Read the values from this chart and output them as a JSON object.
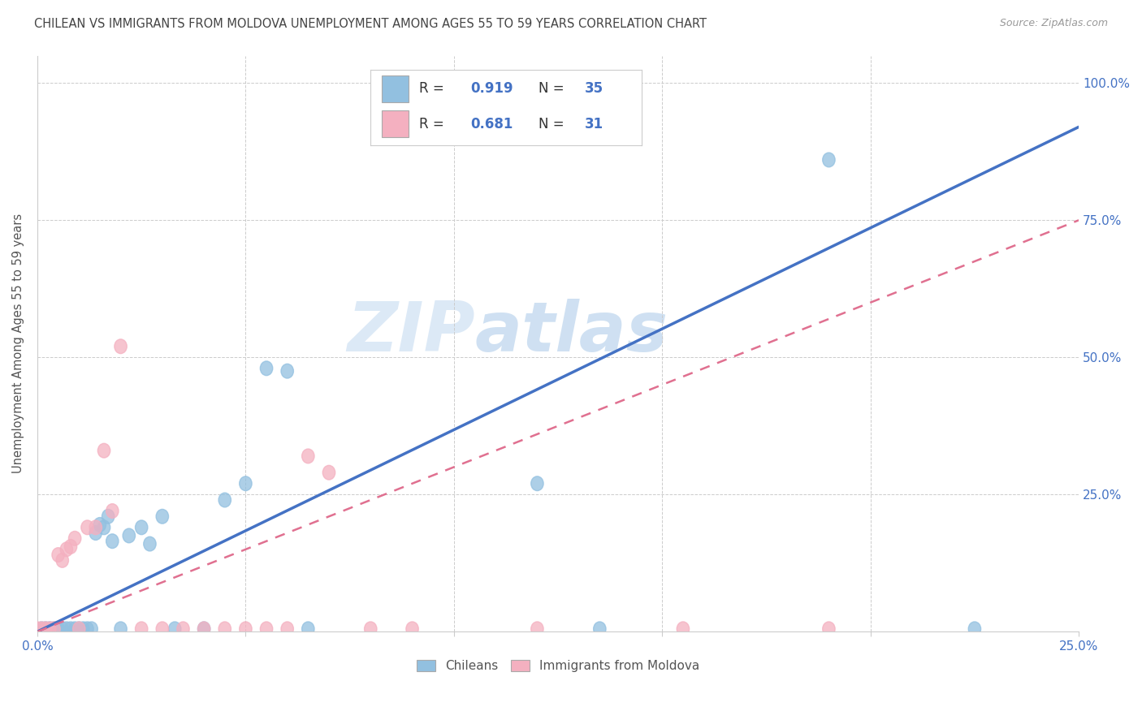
{
  "title": "CHILEAN VS IMMIGRANTS FROM MOLDOVA UNEMPLOYMENT AMONG AGES 55 TO 59 YEARS CORRELATION CHART",
  "source": "Source: ZipAtlas.com",
  "ylabel": "Unemployment Among Ages 55 to 59 years",
  "xlim": [
    0.0,
    0.25
  ],
  "ylim": [
    0.0,
    1.05
  ],
  "xticks": [
    0.0,
    0.05,
    0.1,
    0.15,
    0.2,
    0.25
  ],
  "yticks": [
    0.0,
    0.25,
    0.5,
    0.75,
    1.0
  ],
  "ytick_labels_right": [
    "",
    "25.0%",
    "50.0%",
    "75.0%",
    "100.0%"
  ],
  "xtick_labels": [
    "0.0%",
    "",
    "",
    "",
    "",
    "25.0%"
  ],
  "blue_R": "0.919",
  "blue_N": "35",
  "pink_R": "0.681",
  "pink_N": "31",
  "blue_scatter_x": [
    0.001,
    0.002,
    0.003,
    0.004,
    0.005,
    0.005,
    0.006,
    0.007,
    0.008,
    0.009,
    0.01,
    0.011,
    0.012,
    0.013,
    0.014,
    0.015,
    0.016,
    0.017,
    0.018,
    0.02,
    0.022,
    0.025,
    0.027,
    0.03,
    0.033,
    0.04,
    0.045,
    0.05,
    0.055,
    0.06,
    0.065,
    0.12,
    0.135,
    0.19,
    0.225
  ],
  "blue_scatter_y": [
    0.005,
    0.005,
    0.005,
    0.005,
    0.005,
    0.005,
    0.005,
    0.005,
    0.005,
    0.005,
    0.005,
    0.005,
    0.005,
    0.005,
    0.18,
    0.195,
    0.19,
    0.21,
    0.165,
    0.005,
    0.175,
    0.19,
    0.16,
    0.21,
    0.005,
    0.005,
    0.24,
    0.27,
    0.48,
    0.475,
    0.005,
    0.27,
    0.005,
    0.86,
    0.005
  ],
  "pink_scatter_x": [
    0.0,
    0.001,
    0.002,
    0.003,
    0.004,
    0.005,
    0.006,
    0.007,
    0.008,
    0.009,
    0.01,
    0.012,
    0.014,
    0.016,
    0.018,
    0.02,
    0.025,
    0.03,
    0.035,
    0.04,
    0.045,
    0.05,
    0.055,
    0.06,
    0.065,
    0.07,
    0.08,
    0.09,
    0.12,
    0.155,
    0.19
  ],
  "pink_scatter_y": [
    0.005,
    0.005,
    0.005,
    0.005,
    0.005,
    0.14,
    0.13,
    0.15,
    0.155,
    0.17,
    0.005,
    0.19,
    0.19,
    0.33,
    0.22,
    0.52,
    0.005,
    0.005,
    0.005,
    0.005,
    0.005,
    0.005,
    0.005,
    0.005,
    0.32,
    0.29,
    0.005,
    0.005,
    0.005,
    0.005,
    0.005
  ],
  "blue_line_x0": 0.0,
  "blue_line_x1": 0.25,
  "blue_line_y0": 0.0,
  "blue_line_y1": 0.92,
  "pink_line_x0": 0.0,
  "pink_line_x1": 0.25,
  "pink_line_y0": 0.0,
  "pink_line_y1": 0.75,
  "bg_color": "#ffffff",
  "blue_dot_color": "#92C0E0",
  "pink_dot_color": "#F4B0C0",
  "blue_line_color": "#4472C4",
  "pink_line_color": "#E07090",
  "grid_color": "#CCCCCC",
  "title_color": "#444444",
  "axis_label_color": "#555555",
  "legend_text_color": "#4472C4",
  "tick_color": "#4472C4",
  "watermark_main": "ZIP",
  "watermark_sub": "atlas",
  "watermark_color_main": "#B8D0E8",
  "watermark_color_sub": "#A8C4E0"
}
